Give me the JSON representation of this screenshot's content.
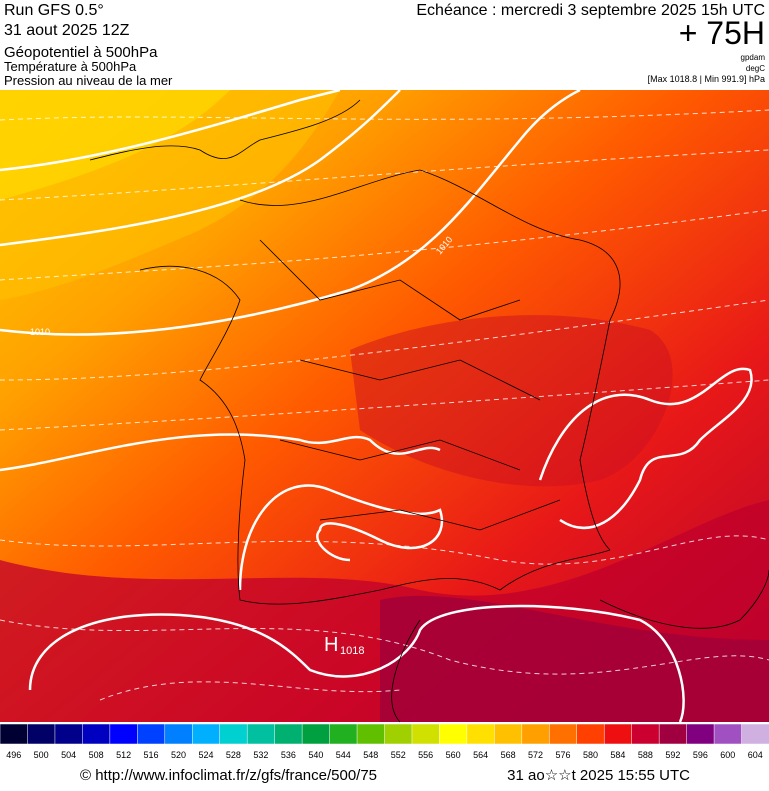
{
  "header": {
    "run": "Run GFS 0.5°",
    "date": "31 aout 2025 12Z",
    "field1": "Géopotentiel à 500hPa",
    "field2": "Température à 500hPa",
    "field3": "Pression au niveau de la mer",
    "echeance": "Echéance : mercredi 3 septembre 2025 15h UTC",
    "lead": "+ 75H",
    "unit1": "gpdam",
    "unit2": "degC",
    "range": "[Max 1018.8 | Min 991.9] hPa"
  },
  "map": {
    "isobar_labels": [
      "1010",
      "1010"
    ],
    "high": "H",
    "high_value": "1018"
  },
  "colorbar": {
    "ticks": [
      496,
      500,
      504,
      508,
      512,
      516,
      520,
      524,
      528,
      532,
      536,
      540,
      544,
      548,
      552,
      556,
      560,
      564,
      568,
      572,
      576,
      580,
      584,
      588,
      592,
      596,
      600,
      604
    ],
    "colors": [
      "#000033",
      "#000066",
      "#00008b",
      "#0000c0",
      "#0000ff",
      "#0040ff",
      "#0080ff",
      "#00b0ff",
      "#00d0d0",
      "#00c0a0",
      "#00b070",
      "#00a040",
      "#20b020",
      "#60c000",
      "#a0d000",
      "#d0e000",
      "#ffff00",
      "#ffe000",
      "#ffc000",
      "#ffa000",
      "#ff7000",
      "#ff4000",
      "#ee1010",
      "#cc0030",
      "#a00040",
      "#800080",
      "#a050c0",
      "#d0b0e0"
    ]
  },
  "footer": {
    "url": "© http://www.infoclimat.fr/z/gfs/france/500/75",
    "timestamp": "31 ao☆☆t 2025 15:55 UTC"
  }
}
